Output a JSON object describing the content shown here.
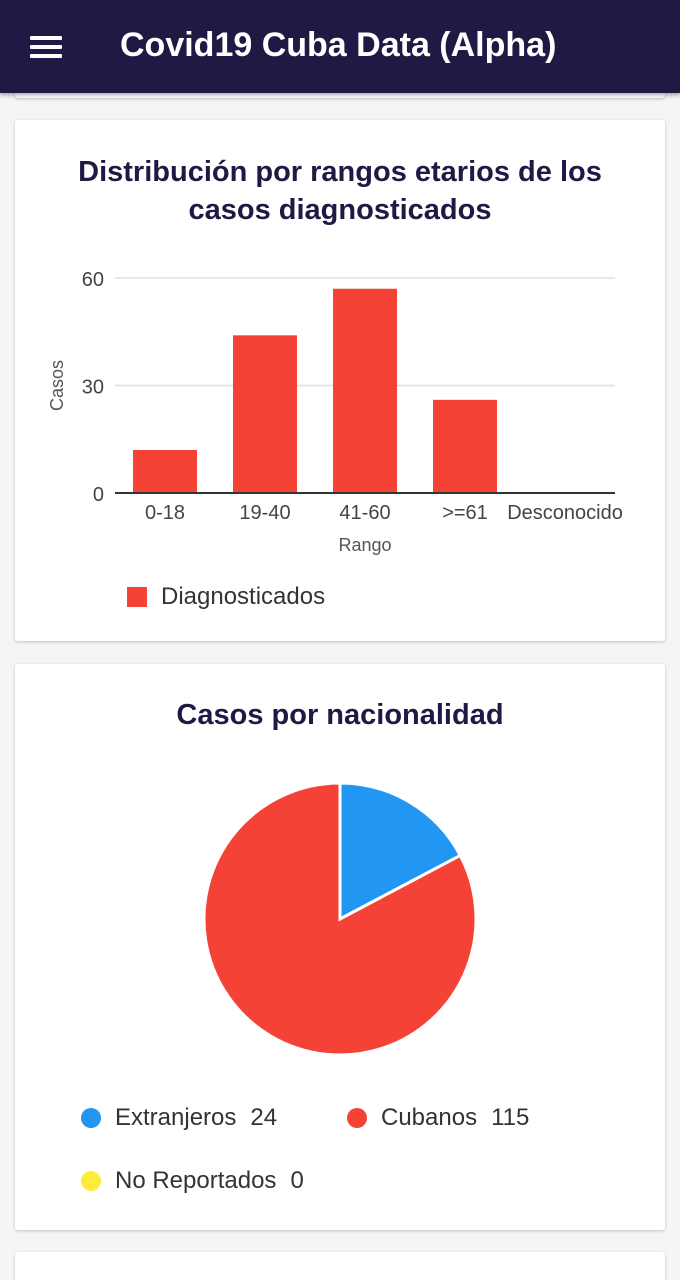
{
  "app": {
    "title": "Covid19 Cuba Data (Alpha)"
  },
  "age_card": {
    "title_line1": "Distribución por rangos etarios de los",
    "title_line2": "casos diagnosticados",
    "legend_label": "Diagnosticados"
  },
  "nationality_card": {
    "title": "Casos por nacionalidad",
    "legend": [
      {
        "label": "Extranjeros",
        "value": "24",
        "color": "#2196f3"
      },
      {
        "label": "Cubanos",
        "value": "115",
        "color": "#f44336"
      },
      {
        "label": "No Reportados",
        "value": "0",
        "color": "#ffeb3b"
      }
    ]
  },
  "chart_data": [
    {
      "type": "bar",
      "title": "Distribución por rangos etarios de los casos diagnosticados",
      "categories": [
        "0-18",
        "19-40",
        "41-60",
        ">=61",
        "Desconocido"
      ],
      "series": [
        {
          "name": "Diagnosticados",
          "values": [
            12,
            44,
            57,
            26,
            0
          ],
          "color": "#f44336"
        }
      ],
      "xlabel": "Rango",
      "ylabel": "Casos",
      "ylim": [
        0,
        60
      ],
      "yticks": [
        0,
        30,
        60
      ],
      "grid": true,
      "legend": "bottom-left"
    },
    {
      "type": "pie",
      "title": "Casos por nacionalidad",
      "labels": [
        "Extranjeros",
        "Cubanos",
        "No Reportados"
      ],
      "values": [
        24,
        115,
        0
      ],
      "colors": [
        "#2196f3",
        "#f44336",
        "#ffeb3b"
      ],
      "legend": "bottom"
    }
  ]
}
